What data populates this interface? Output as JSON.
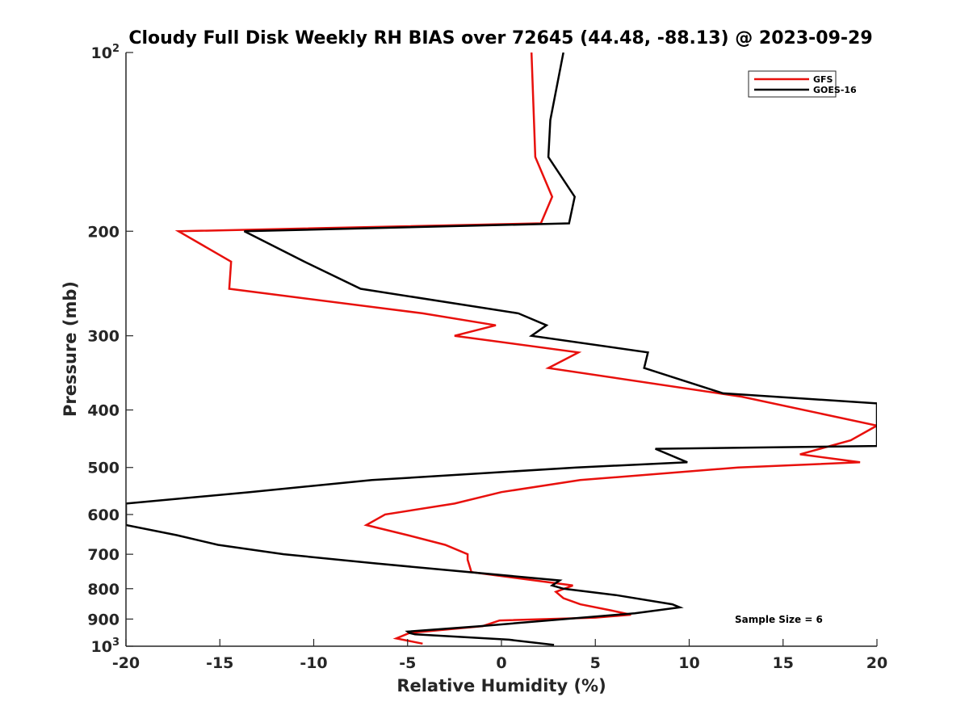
{
  "chart_data": {
    "type": "line",
    "title": "Cloudy Full Disk Weekly RH BIAS over 72645 (44.48, -88.13) @ 2023-09-29",
    "xlabel": "Relative Humidity (%)",
    "ylabel": "Pressure (mb)",
    "xlim": [
      -20,
      20
    ],
    "ylim": [
      100,
      1000
    ],
    "y_scale": "log",
    "y_reversed": true,
    "grid": false,
    "legend_position": "top-right",
    "x_ticks": [
      "-20",
      "-15",
      "-10",
      "-5",
      "0",
      "5",
      "10",
      "15",
      "20"
    ],
    "y_ticks": [
      {
        "value": 100,
        "base": "10",
        "exp": "2"
      },
      {
        "value": 200,
        "text": "200"
      },
      {
        "value": 300,
        "text": "300"
      },
      {
        "value": 400,
        "text": "400"
      },
      {
        "value": 500,
        "text": "500"
      },
      {
        "value": 600,
        "text": "600"
      },
      {
        "value": 700,
        "text": "700"
      },
      {
        "value": 800,
        "text": "800"
      },
      {
        "value": 900,
        "text": "900"
      },
      {
        "value": 1000,
        "base": "10",
        "exp": "3"
      }
    ],
    "series": [
      {
        "name": "GFS",
        "color": "#e8100c",
        "points": [
          [
            1.6,
            100
          ],
          [
            1.8,
            150
          ],
          [
            2.7,
            175
          ],
          [
            2.1,
            194
          ],
          [
            -17.2,
            200
          ],
          [
            -14.4,
            225
          ],
          [
            -14.5,
            250
          ],
          [
            -4.2,
            275
          ],
          [
            -0.3,
            288
          ],
          [
            -2.5,
            300
          ],
          [
            4.1,
            320
          ],
          [
            2.5,
            340
          ],
          [
            12.8,
            380
          ],
          [
            20.0,
            425
          ],
          [
            18.6,
            450
          ],
          [
            15.9,
            475
          ],
          [
            19.1,
            490
          ],
          [
            12.6,
            500
          ],
          [
            4.2,
            525
          ],
          [
            0.0,
            550
          ],
          [
            -2.5,
            575
          ],
          [
            -6.2,
            600
          ],
          [
            -7.2,
            625
          ],
          [
            -5.0,
            650
          ],
          [
            -3.0,
            675
          ],
          [
            -1.8,
            700
          ],
          [
            -1.8,
            715
          ],
          [
            -1.6,
            750
          ],
          [
            1.8,
            775
          ],
          [
            3.8,
            790
          ],
          [
            2.9,
            810
          ],
          [
            3.3,
            830
          ],
          [
            4.2,
            850
          ],
          [
            5.8,
            870
          ],
          [
            6.9,
            885
          ],
          [
            5.0,
            895
          ],
          [
            -0.1,
            905
          ],
          [
            -1.0,
            925
          ],
          [
            -4.9,
            950
          ],
          [
            -5.6,
            970
          ],
          [
            -4.2,
            990
          ]
        ]
      },
      {
        "name": "GOES-16",
        "color": "#000000",
        "points": [
          [
            3.3,
            100
          ],
          [
            2.6,
            130
          ],
          [
            2.5,
            150
          ],
          [
            3.9,
            175
          ],
          [
            3.6,
            194
          ],
          [
            -13.7,
            200
          ],
          [
            -10.5,
            225
          ],
          [
            -7.5,
            250
          ],
          [
            0.9,
            275
          ],
          [
            2.4,
            288
          ],
          [
            1.6,
            300
          ],
          [
            7.8,
            320
          ],
          [
            7.6,
            340
          ],
          [
            11.8,
            375
          ],
          [
            20.0,
            390
          ],
          [
            20.0,
            460
          ],
          [
            8.2,
            465
          ],
          [
            9.9,
            490
          ],
          [
            4.0,
            500
          ],
          [
            -6.9,
            525
          ],
          [
            -13.4,
            550
          ],
          [
            -20.0,
            575
          ],
          [
            -20.0,
            625
          ],
          [
            -17.3,
            650
          ],
          [
            -15.1,
            675
          ],
          [
            -11.6,
            700
          ],
          [
            -6.8,
            725
          ],
          [
            3.1,
            775
          ],
          [
            2.7,
            790
          ],
          [
            3.3,
            800
          ],
          [
            6.1,
            820
          ],
          [
            9.1,
            850
          ],
          [
            9.5,
            860
          ],
          [
            7.1,
            880
          ],
          [
            -1.1,
            925
          ],
          [
            -5.0,
            945
          ],
          [
            -4.9,
            950
          ],
          [
            -4.6,
            955
          ],
          [
            0.4,
            975
          ],
          [
            2.8,
            995
          ]
        ]
      }
    ],
    "annotation": "Sample Size = 6"
  }
}
